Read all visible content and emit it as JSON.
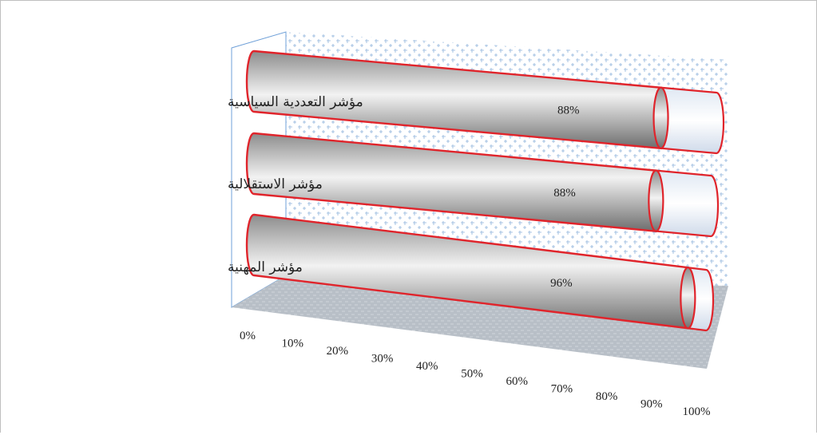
{
  "chart_data": {
    "type": "bar",
    "orientation": "horizontal",
    "style": "3d-cylinder",
    "categories": [
      "مؤشر التعددية السياسية",
      "مؤشر الاستقلالية",
      "مؤشر المهنية"
    ],
    "values": [
      88,
      88,
      96
    ],
    "value_labels": [
      "88%",
      "88%",
      "96%"
    ],
    "x_ticks": [
      "0%",
      "10%",
      "20%",
      "30%",
      "40%",
      "50%",
      "60%",
      "70%",
      "80%",
      "90%",
      "100%"
    ],
    "xlim": [
      0,
      100
    ],
    "title": "",
    "xlabel": "",
    "ylabel": "",
    "colors": {
      "bar_fill": "#a6a6a6",
      "bar_outline": "#e0242b",
      "wall_pattern": "#8fb4dc",
      "floor": "#9aa3ad"
    }
  }
}
